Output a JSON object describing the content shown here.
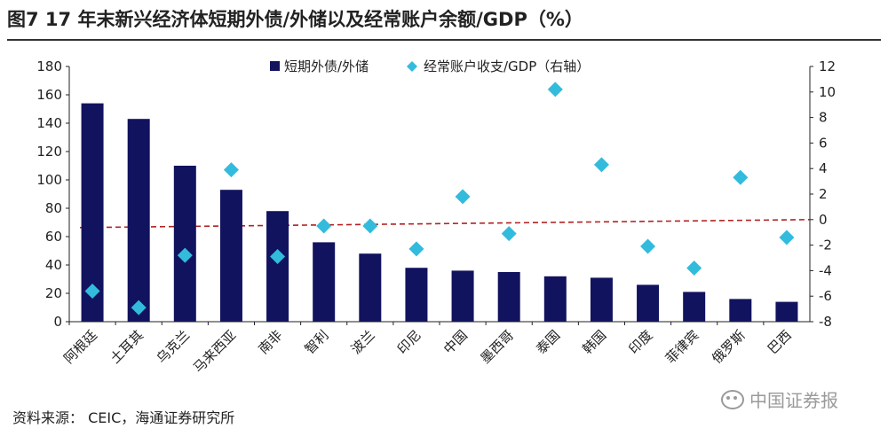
{
  "title": "图7  17 年末新兴经济体短期外债/外储以及经常账户余额/GDP（%）",
  "source": "资料来源：  CEIC，海通证券研究所",
  "watermark": "中国证券报",
  "colors": {
    "bar": "#12135F",
    "diamond": "#33BBDD",
    "zero_line": "#B22222"
  },
  "chart_data": {
    "type": "bar",
    "categories": [
      "阿根廷",
      "土耳其",
      "乌克兰",
      "马来西亚",
      "南非",
      "智利",
      "波兰",
      "印尼",
      "中国",
      "墨西哥",
      "泰国",
      "韩国",
      "印度",
      "菲律宾",
      "俄罗斯",
      "巴西"
    ],
    "series": [
      {
        "name": "短期外债/外储",
        "type": "bar",
        "axis": "left",
        "values": [
          154,
          143,
          110,
          93,
          78,
          56,
          48,
          38,
          36,
          35,
          32,
          31,
          26,
          21,
          16,
          14
        ]
      },
      {
        "name": "经常账户收支/GDP（右轴）",
        "type": "scatter",
        "marker": "diamond",
        "axis": "right",
        "values": [
          -5.6,
          -6.9,
          -2.8,
          3.9,
          -2.9,
          -0.5,
          -0.5,
          -2.3,
          1.8,
          -1.1,
          10.2,
          4.3,
          -2.1,
          -3.8,
          3.3,
          -1.4
        ]
      }
    ],
    "y_left": {
      "min": 0,
      "max": 180,
      "ticks": [
        "0",
        "20",
        "40",
        "60",
        "80",
        "100",
        "120",
        "140",
        "160",
        "180"
      ]
    },
    "y_right": {
      "min": -8,
      "max": 12,
      "ticks": [
        "-8",
        "-6",
        "-4",
        "-2",
        "0",
        "2",
        "4",
        "6",
        "8",
        "10",
        "12"
      ]
    },
    "reference_line": {
      "axis": "right",
      "value": 0,
      "style": "dashed"
    },
    "legend_position": "top-center",
    "grid": false
  }
}
